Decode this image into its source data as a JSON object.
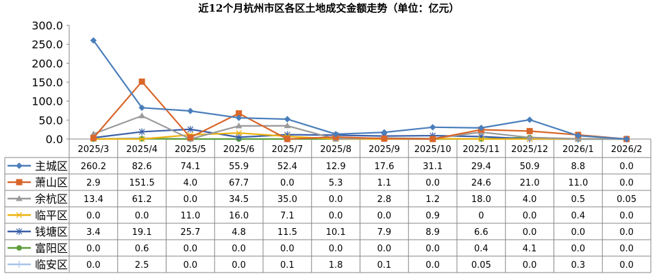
{
  "chart_data": {
    "type": "line",
    "title": "近12个月杭州市区各区土地成交金额走势（单位：亿元）",
    "categories": [
      "2025/3",
      "2025/4",
      "2025/5",
      "2025/6",
      "2025/7",
      "2025/8",
      "2025/9",
      "2025/10",
      "2025/11",
      "2025/12",
      "2026/1",
      "2026/2"
    ],
    "ylim": [
      0,
      300
    ],
    "yticks": [
      "0.0",
      "50.0",
      "100.0",
      "150.0",
      "200.0",
      "250.0",
      "300.0"
    ],
    "grid": false,
    "legend": "data-table",
    "series": [
      {
        "name": "主城区",
        "color": "#4A7EBB",
        "marker": "diamond",
        "values": [
          260.2,
          82.6,
          74.1,
          55.9,
          52.4,
          12.9,
          17.6,
          31.1,
          29.4,
          50.9,
          8.8,
          0.0
        ],
        "labels": [
          "260.2",
          "82.6",
          "74.1",
          "55.9",
          "52.4",
          "12.9",
          "17.6",
          "31.1",
          "29.4",
          "50.9",
          "8.8",
          "0.0"
        ]
      },
      {
        "name": "萧山区",
        "color": "#D9662A",
        "marker": "square",
        "values": [
          2.9,
          151.5,
          4.0,
          67.7,
          0.0,
          5.3,
          1.1,
          0.0,
          24.6,
          21.0,
          11.0,
          0.0
        ],
        "labels": [
          "2.9",
          "151.5",
          "4.0",
          "67.7",
          "0.0",
          "5.3",
          "1.1",
          "0.0",
          "24.6",
          "21.0",
          "11.0",
          "0.0"
        ]
      },
      {
        "name": "余杭区",
        "color": "#9A9A9A",
        "marker": "triangle",
        "values": [
          13.4,
          61.2,
          0.0,
          34.5,
          35.0,
          0.0,
          2.8,
          1.2,
          18.0,
          4.0,
          0.5,
          0.05
        ],
        "labels": [
          "13.4",
          "61.2",
          "0.0",
          "34.5",
          "35.0",
          "0.0",
          "2.8",
          "1.2",
          "18.0",
          "4.0",
          "0.5",
          "0.05"
        ]
      },
      {
        "name": "临平区",
        "color": "#EDB20F",
        "marker": "x",
        "values": [
          0.0,
          0.0,
          11.0,
          16.0,
          7.1,
          0.0,
          0.0,
          0.9,
          0,
          0.0,
          0.4,
          0.0
        ],
        "labels": [
          "0.0",
          "0.0",
          "11.0",
          "16.0",
          "7.1",
          "0.0",
          "0.0",
          "0.9",
          "0",
          "0.0",
          "0.4",
          "0.0"
        ]
      },
      {
        "name": "钱塘区",
        "color": "#3A5FA8",
        "marker": "star",
        "values": [
          3.4,
          19.1,
          25.7,
          4.8,
          11.5,
          10.1,
          7.9,
          8.9,
          6.6,
          0.0,
          0.0,
          0.0
        ],
        "labels": [
          "3.4",
          "19.1",
          "25.7",
          "4.8",
          "11.5",
          "10.1",
          "7.9",
          "8.9",
          "6.6",
          "0.0",
          "0.0",
          "0.0"
        ]
      },
      {
        "name": "富阳区",
        "color": "#5E9E3A",
        "marker": "circle",
        "values": [
          0.0,
          0.6,
          0.0,
          0.0,
          0.0,
          0.0,
          0.0,
          0.0,
          0.4,
          4.1,
          0.0,
          0.0
        ],
        "labels": [
          "0.0",
          "0.6",
          "0.0",
          "0.0",
          "0.0",
          "0.0",
          "0.0",
          "0.0",
          "0.4",
          "4.1",
          "0.0",
          "0.0"
        ]
      },
      {
        "name": "临安区",
        "color": "#A7C4EA",
        "marker": "plus",
        "values": [
          0.0,
          2.5,
          0.0,
          0.0,
          0.1,
          1.8,
          0.1,
          0.0,
          0.05,
          0.0,
          0.3,
          0.0
        ],
        "labels": [
          "0.0",
          "2.5",
          "0.0",
          "0.0",
          "0.1",
          "1.8",
          "0.1",
          "0.0",
          "0.05",
          "0.0",
          "0.3",
          "0.0"
        ]
      }
    ]
  }
}
